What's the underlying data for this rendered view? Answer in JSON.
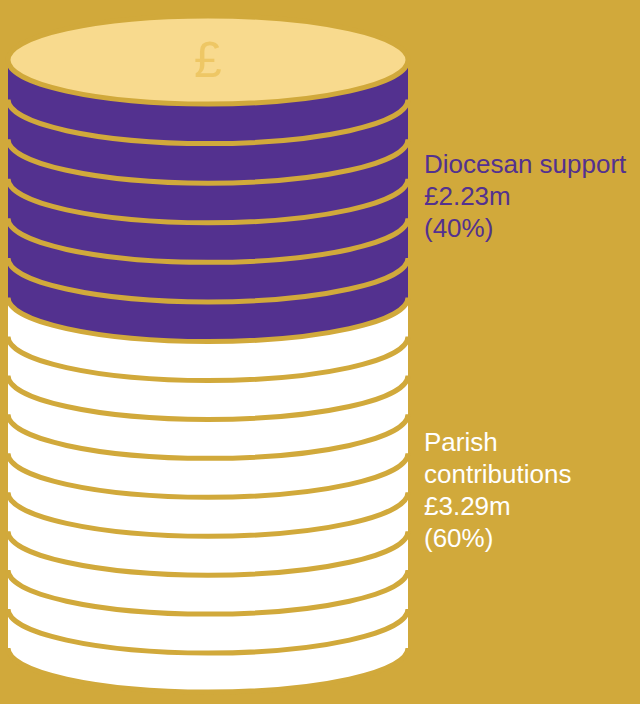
{
  "chart_data": {
    "type": "bar",
    "stacked": true,
    "data_labels": true,
    "icon_text": "£",
    "series": [
      {
        "name": "Parish contributions",
        "color": "#ffffff",
        "values": [
          3.29
        ],
        "value_labels": [
          "£3.29m"
        ],
        "percent": [
          60
        ],
        "percent_labels": [
          "(60%)"
        ]
      },
      {
        "name": "Diocesan support",
        "color": "#53318f",
        "values": [
          2.23
        ],
        "value_labels": [
          "£2.23m"
        ],
        "percent": [
          40
        ],
        "percent_labels": [
          "(40%)"
        ]
      }
    ]
  }
}
